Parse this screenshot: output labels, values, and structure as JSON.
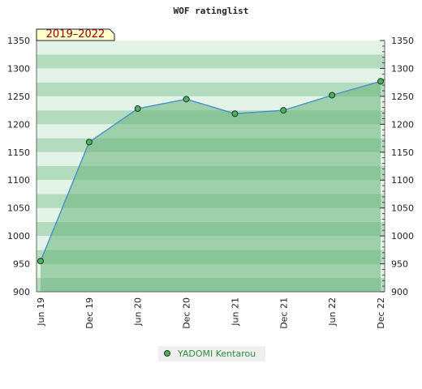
{
  "chart_data": {
    "type": "area",
    "title": "WOF ratinglist",
    "period_label": "2019–2022",
    "categories": [
      "Jun 19",
      "Dec 19",
      "Jun 20",
      "Dec 20",
      "Jun 21",
      "Dec 21",
      "Jun 22",
      "Dec 22"
    ],
    "series": [
      {
        "name": "YADOMI Kentarou",
        "values": [
          955,
          1168,
          1228,
          1245,
          1219,
          1225,
          1252,
          1277
        ]
      }
    ],
    "ylim": [
      900,
      1350
    ],
    "yticks": [
      900,
      950,
      1000,
      1050,
      1100,
      1150,
      1200,
      1250,
      1300,
      1350
    ],
    "legend_position": "bottom",
    "colors": {
      "area_fill": "#66b37a",
      "line": "#4a90c8",
      "marker": "#4caf62",
      "band_dark": "#b3dcbf",
      "band_light": "#e4f3e8"
    }
  }
}
